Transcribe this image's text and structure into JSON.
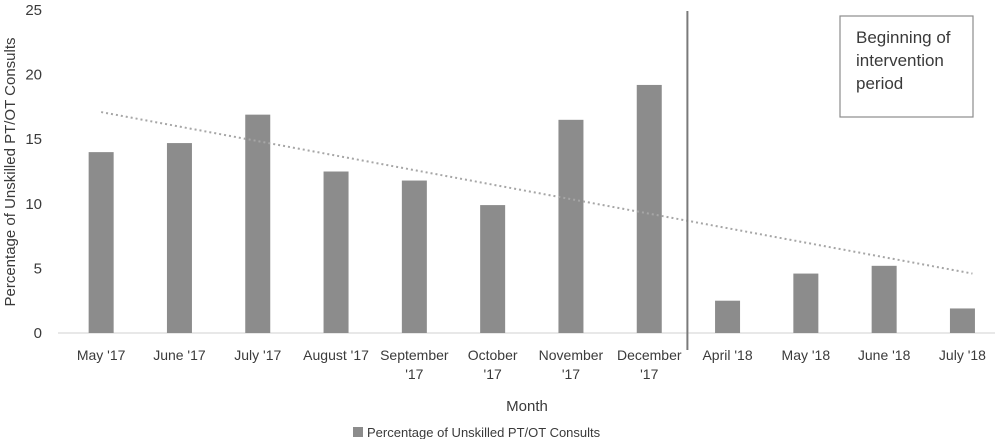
{
  "chart_data": {
    "type": "bar",
    "categories": [
      [
        "May '17"
      ],
      [
        "June '17"
      ],
      [
        "July '17"
      ],
      [
        "August '17"
      ],
      [
        "September",
        "'17"
      ],
      [
        "October",
        "'17"
      ],
      [
        "November",
        "'17"
      ],
      [
        "December",
        "'17"
      ],
      [
        "April '18"
      ],
      [
        "May '18"
      ],
      [
        "June '18"
      ],
      [
        "July '18"
      ]
    ],
    "series": [
      {
        "name": "Percentage of Unskilled PT/OT Consults",
        "values": [
          14.0,
          14.7,
          16.9,
          12.5,
          11.8,
          9.9,
          16.5,
          19.2,
          2.5,
          4.6,
          5.2,
          1.9
        ],
        "color": "#8c8c8c"
      }
    ],
    "trendline": {
      "from": 17.1,
      "to": 4.6,
      "color": "#a6a6a6",
      "style": "dotted"
    },
    "divider_after_index": 7,
    "annotation": [
      "Beginning of",
      "intervention",
      "period"
    ],
    "xlabel": "Month",
    "ylabel": "Percentage of Unskilled PT/OT Consults",
    "ylim": [
      0,
      25
    ],
    "yticks": [
      0,
      5,
      10,
      15,
      20,
      25
    ],
    "grid": false,
    "legend_position": "bottom"
  }
}
